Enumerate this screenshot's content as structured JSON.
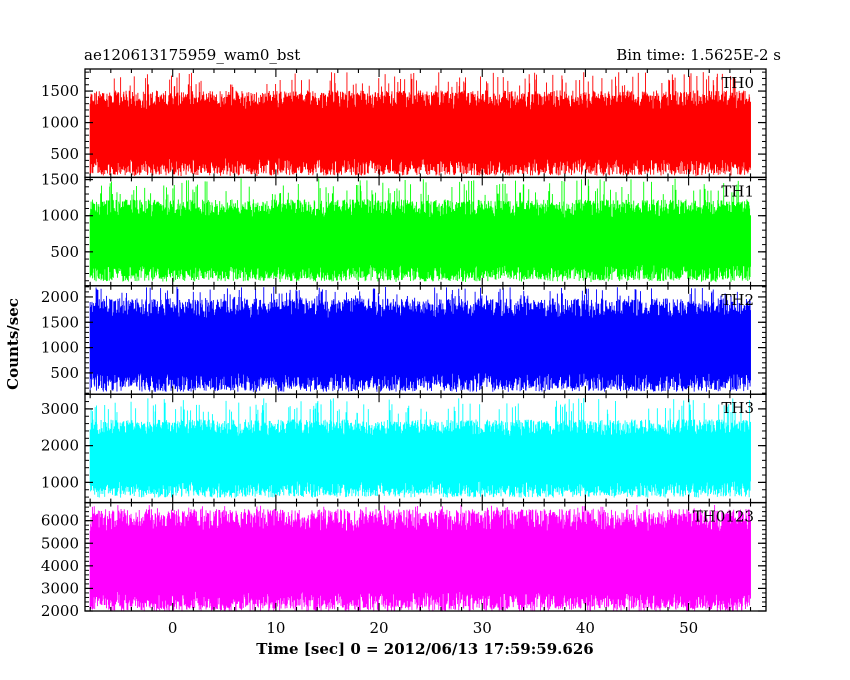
{
  "header": {
    "left_title": "ae120613175959_wam0_bst",
    "right_title": "Bin time: 1.5625E-2 s"
  },
  "chart_data": {
    "type": "line",
    "xlabel": "Time [sec] 0 = 2012/06/13 17:59:59.626",
    "ylabel": "Counts/sec",
    "xlim": [
      -8.5,
      57.5
    ],
    "x_ticks": [
      0,
      10,
      20,
      30,
      40,
      50
    ],
    "x_range": [
      -8,
      56
    ],
    "grid": false,
    "legend": "none",
    "panels": [
      {
        "name": "TH0",
        "color": "#ff0000",
        "ylim": [
          130,
          1850
        ],
        "y_ticks": [
          500,
          1000,
          1500
        ],
        "typical_range": [
          350,
          1300
        ],
        "spike_range": [
          150,
          1800
        ],
        "mean": 800
      },
      {
        "name": "TH1",
        "color": "#00ff00",
        "ylim": [
          30,
          1530
        ],
        "y_ticks": [
          500,
          1000,
          1500
        ],
        "typical_range": [
          250,
          1050
        ],
        "spike_range": [
          80,
          1520
        ],
        "mean": 630
      },
      {
        "name": "TH2",
        "color": "#0000ff",
        "ylim": [
          80,
          2220
        ],
        "y_ticks": [
          500,
          1000,
          1500,
          2000
        ],
        "typical_range": [
          400,
          1700
        ],
        "spike_range": [
          150,
          2200
        ],
        "mean": 1050
      },
      {
        "name": "TH3",
        "color": "#00ffff",
        "ylim": [
          450,
          3400
        ],
        "y_ticks": [
          1000,
          2000,
          3000
        ],
        "typical_range": [
          900,
          2400
        ],
        "spike_range": [
          700,
          3300
        ],
        "mean": 1650
      },
      {
        "name": "TH0123",
        "color": "#ff00ff",
        "ylim": [
          2000,
          6800
        ],
        "y_ticks": [
          2000,
          3000,
          4000,
          5000,
          6000
        ],
        "typical_range": [
          2600,
          5800
        ],
        "spike_range": [
          2050,
          6700
        ],
        "mean": 4100
      }
    ]
  }
}
